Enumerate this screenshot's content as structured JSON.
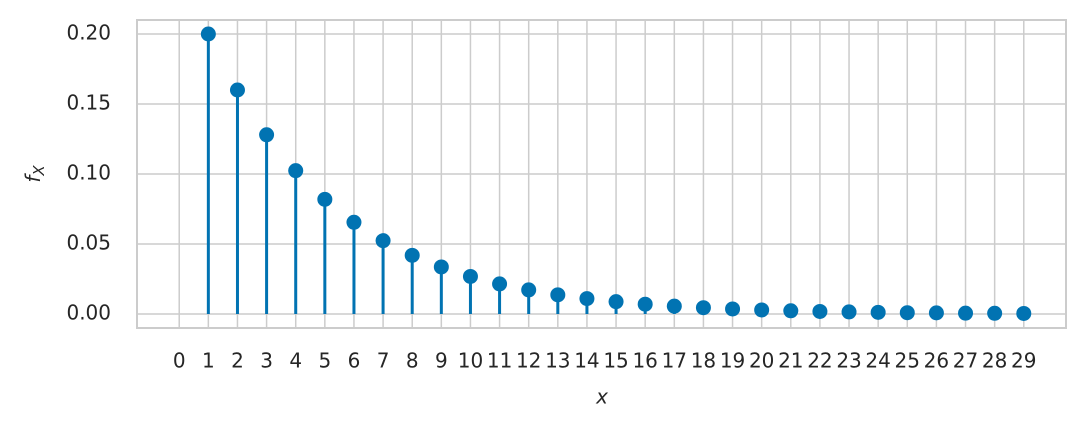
{
  "chart_data": {
    "type": "stem",
    "xlabel": "x",
    "ylabel": {
      "main": "f",
      "sub": "X"
    },
    "x": [
      1,
      2,
      3,
      4,
      5,
      6,
      7,
      8,
      9,
      10,
      11,
      12,
      13,
      14,
      15,
      16,
      17,
      18,
      19,
      20,
      21,
      22,
      23,
      24,
      25,
      26,
      27,
      28,
      29
    ],
    "values": [
      0.2,
      0.16,
      0.128,
      0.1024,
      0.0819,
      0.0655,
      0.0524,
      0.0419,
      0.0336,
      0.0268,
      0.0215,
      0.0172,
      0.0137,
      0.011,
      0.0088,
      0.007,
      0.0056,
      0.0045,
      0.0036,
      0.0029,
      0.0023,
      0.0018,
      0.0015,
      0.0012,
      0.0009,
      0.0008,
      0.0006,
      0.0005,
      0.0004
    ],
    "color": "#0173b2",
    "xlim": [
      -1.45,
      30.45
    ],
    "ylim": [
      -0.01,
      0.21
    ],
    "xticks": [
      0,
      1,
      2,
      3,
      4,
      5,
      6,
      7,
      8,
      9,
      10,
      11,
      12,
      13,
      14,
      15,
      16,
      17,
      18,
      19,
      20,
      21,
      22,
      23,
      24,
      25,
      26,
      27,
      28,
      29
    ],
    "yticks": [
      {
        "value": 0,
        "label": "0.00"
      },
      {
        "value": 0.05,
        "label": "0.05"
      },
      {
        "value": 0.1,
        "label": "0.10"
      },
      {
        "value": 0.15,
        "label": "0.15"
      },
      {
        "value": 0.2,
        "label": "0.20"
      }
    ],
    "grid": true
  }
}
